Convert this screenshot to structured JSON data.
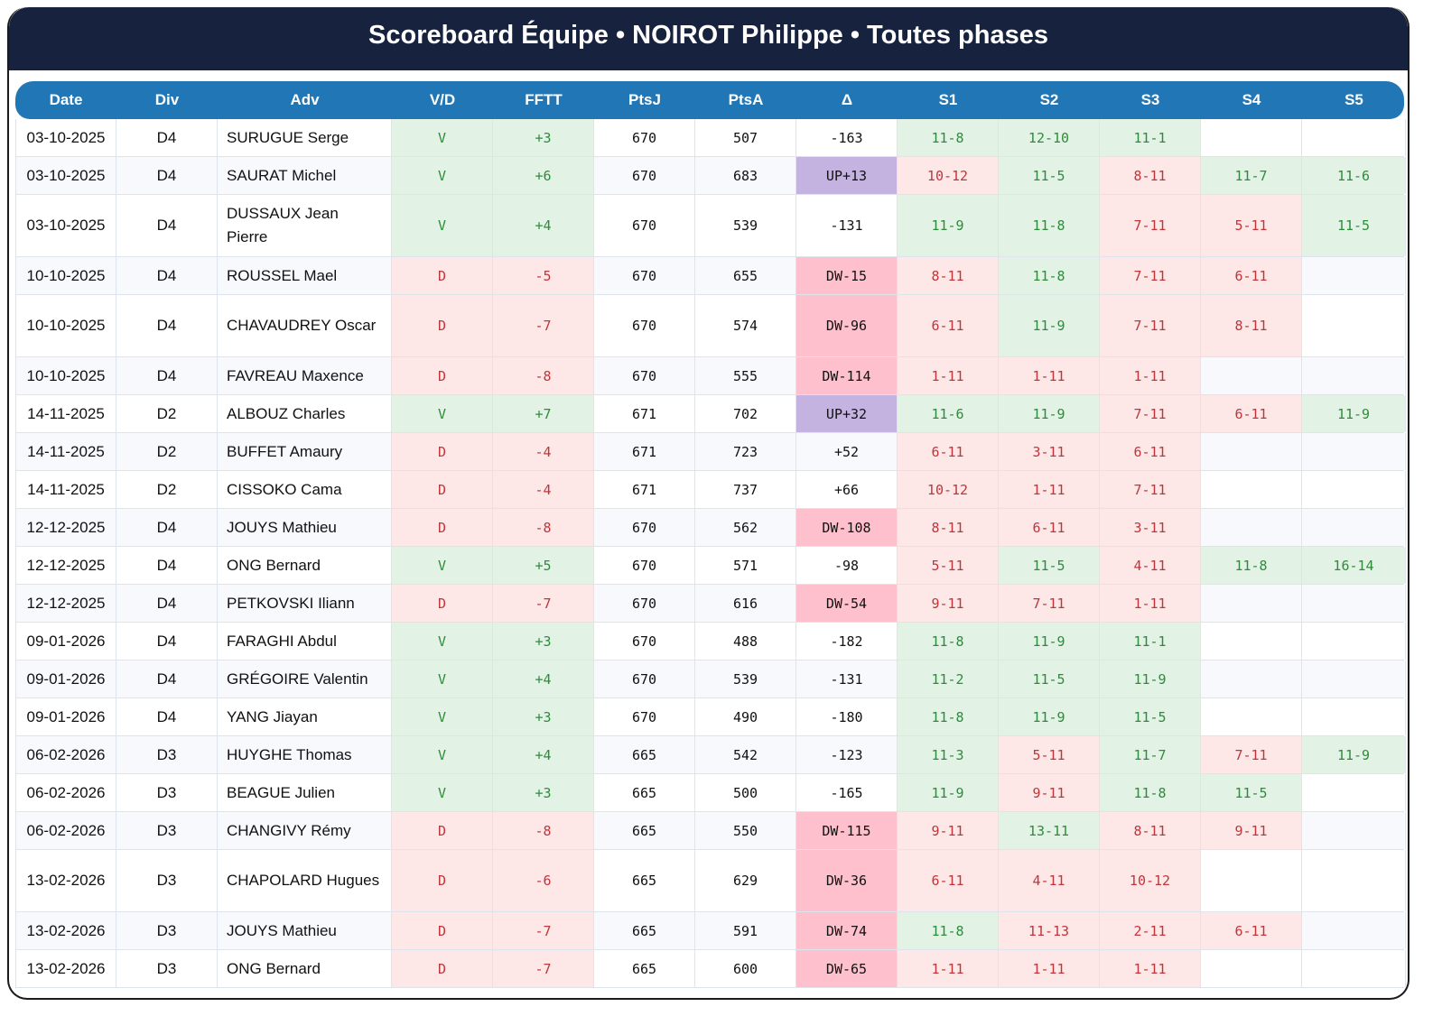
{
  "title": "Scoreboard Équipe • NOIROT Philippe • Toutes phases",
  "colors": {
    "title_bg": "#17223f",
    "header_bg": "#2176b6",
    "win_bg": "#e2f3e6",
    "win_text": "#2e8b3a",
    "loss_bg": "#fde7e7",
    "loss_text": "#c0353a",
    "up_bg": "#c4b3e0",
    "dw_bg": "#fdc0cc"
  },
  "columns": [
    "Date",
    "Div",
    "Adv",
    "V/D",
    "FFTT",
    "PtsJ",
    "PtsA",
    "Δ",
    "S1",
    "S2",
    "S3",
    "S4",
    "S5"
  ],
  "rows": [
    {
      "date": "03-10-2025",
      "div": "D4",
      "adv": "SURUGUE Serge",
      "vd": "V",
      "fftt": "+3",
      "ptsj": "670",
      "ptsa": "507",
      "delta": "-163",
      "sets": [
        "11-8",
        "12-10",
        "11-1",
        "",
        ""
      ]
    },
    {
      "date": "03-10-2025",
      "div": "D4",
      "adv": "SAURAT Michel",
      "vd": "V",
      "fftt": "+6",
      "ptsj": "670",
      "ptsa": "683",
      "delta": "UP+13",
      "sets": [
        "10-12",
        "11-5",
        "8-11",
        "11-7",
        "11-6"
      ]
    },
    {
      "date": "03-10-2025",
      "div": "D4",
      "adv": "DUSSAUX Jean Pierre",
      "vd": "V",
      "fftt": "+4",
      "ptsj": "670",
      "ptsa": "539",
      "delta": "-131",
      "sets": [
        "11-9",
        "11-8",
        "7-11",
        "5-11",
        "11-5"
      ]
    },
    {
      "date": "10-10-2025",
      "div": "D4",
      "adv": "ROUSSEL Mael",
      "vd": "D",
      "fftt": "-5",
      "ptsj": "670",
      "ptsa": "655",
      "delta": "DW-15",
      "sets": [
        "8-11",
        "11-8",
        "7-11",
        "6-11",
        ""
      ]
    },
    {
      "date": "10-10-2025",
      "div": "D4",
      "adv": "CHAVAUDREY Oscar",
      "vd": "D",
      "fftt": "-7",
      "ptsj": "670",
      "ptsa": "574",
      "delta": "DW-96",
      "sets": [
        "6-11",
        "11-9",
        "7-11",
        "8-11",
        ""
      ]
    },
    {
      "date": "10-10-2025",
      "div": "D4",
      "adv": "FAVREAU Maxence",
      "vd": "D",
      "fftt": "-8",
      "ptsj": "670",
      "ptsa": "555",
      "delta": "DW-114",
      "sets": [
        "1-11",
        "1-11",
        "1-11",
        "",
        ""
      ]
    },
    {
      "date": "14-11-2025",
      "div": "D2",
      "adv": "ALBOUZ Charles",
      "vd": "V",
      "fftt": "+7",
      "ptsj": "671",
      "ptsa": "702",
      "delta": "UP+32",
      "sets": [
        "11-6",
        "11-9",
        "7-11",
        "6-11",
        "11-9"
      ]
    },
    {
      "date": "14-11-2025",
      "div": "D2",
      "adv": "BUFFET Amaury",
      "vd": "D",
      "fftt": "-4",
      "ptsj": "671",
      "ptsa": "723",
      "delta": "+52",
      "sets": [
        "6-11",
        "3-11",
        "6-11",
        "",
        ""
      ]
    },
    {
      "date": "14-11-2025",
      "div": "D2",
      "adv": "CISSOKO Cama",
      "vd": "D",
      "fftt": "-4",
      "ptsj": "671",
      "ptsa": "737",
      "delta": "+66",
      "sets": [
        "10-12",
        "1-11",
        "7-11",
        "",
        ""
      ]
    },
    {
      "date": "12-12-2025",
      "div": "D4",
      "adv": "JOUYS Mathieu",
      "vd": "D",
      "fftt": "-8",
      "ptsj": "670",
      "ptsa": "562",
      "delta": "DW-108",
      "sets": [
        "8-11",
        "6-11",
        "3-11",
        "",
        ""
      ]
    },
    {
      "date": "12-12-2025",
      "div": "D4",
      "adv": "ONG Bernard",
      "vd": "V",
      "fftt": "+5",
      "ptsj": "670",
      "ptsa": "571",
      "delta": "-98",
      "sets": [
        "5-11",
        "11-5",
        "4-11",
        "11-8",
        "16-14"
      ]
    },
    {
      "date": "12-12-2025",
      "div": "D4",
      "adv": "PETKOVSKI Iliann",
      "vd": "D",
      "fftt": "-7",
      "ptsj": "670",
      "ptsa": "616",
      "delta": "DW-54",
      "sets": [
        "9-11",
        "7-11",
        "1-11",
        "",
        ""
      ]
    },
    {
      "date": "09-01-2026",
      "div": "D4",
      "adv": "FARAGHI Abdul",
      "vd": "V",
      "fftt": "+3",
      "ptsj": "670",
      "ptsa": "488",
      "delta": "-182",
      "sets": [
        "11-8",
        "11-9",
        "11-1",
        "",
        ""
      ]
    },
    {
      "date": "09-01-2026",
      "div": "D4",
      "adv": "GRÉGOIRE Valentin",
      "vd": "V",
      "fftt": "+4",
      "ptsj": "670",
      "ptsa": "539",
      "delta": "-131",
      "sets": [
        "11-2",
        "11-5",
        "11-9",
        "",
        ""
      ]
    },
    {
      "date": "09-01-2026",
      "div": "D4",
      "adv": "YANG Jiayan",
      "vd": "V",
      "fftt": "+3",
      "ptsj": "670",
      "ptsa": "490",
      "delta": "-180",
      "sets": [
        "11-8",
        "11-9",
        "11-5",
        "",
        ""
      ]
    },
    {
      "date": "06-02-2026",
      "div": "D3",
      "adv": "HUYGHE Thomas",
      "vd": "V",
      "fftt": "+4",
      "ptsj": "665",
      "ptsa": "542",
      "delta": "-123",
      "sets": [
        "11-3",
        "5-11",
        "11-7",
        "7-11",
        "11-9"
      ]
    },
    {
      "date": "06-02-2026",
      "div": "D3",
      "adv": "BEAGUE Julien",
      "vd": "V",
      "fftt": "+3",
      "ptsj": "665",
      "ptsa": "500",
      "delta": "-165",
      "sets": [
        "11-9",
        "9-11",
        "11-8",
        "11-5",
        ""
      ]
    },
    {
      "date": "06-02-2026",
      "div": "D3",
      "adv": "CHANGIVY Rémy",
      "vd": "D",
      "fftt": "-8",
      "ptsj": "665",
      "ptsa": "550",
      "delta": "DW-115",
      "sets": [
        "9-11",
        "13-11",
        "8-11",
        "9-11",
        ""
      ]
    },
    {
      "date": "13-02-2026",
      "div": "D3",
      "adv": "CHAPOLARD Hugues",
      "vd": "D",
      "fftt": "-6",
      "ptsj": "665",
      "ptsa": "629",
      "delta": "DW-36",
      "sets": [
        "6-11",
        "4-11",
        "10-12",
        "",
        ""
      ]
    },
    {
      "date": "13-02-2026",
      "div": "D3",
      "adv": "JOUYS Mathieu",
      "vd": "D",
      "fftt": "-7",
      "ptsj": "665",
      "ptsa": "591",
      "delta": "DW-74",
      "sets": [
        "11-8",
        "11-13",
        "2-11",
        "6-11",
        ""
      ]
    },
    {
      "date": "13-02-2026",
      "div": "D3",
      "adv": "ONG Bernard",
      "vd": "D",
      "fftt": "-7",
      "ptsj": "665",
      "ptsa": "600",
      "delta": "DW-65",
      "sets": [
        "1-11",
        "1-11",
        "1-11",
        "",
        ""
      ]
    }
  ]
}
